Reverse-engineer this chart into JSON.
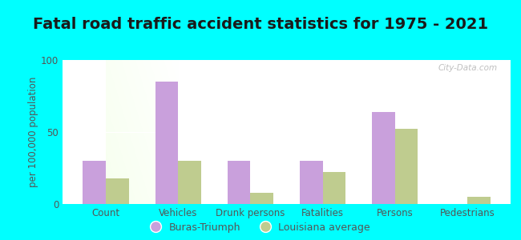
{
  "title": "Fatal road traffic accident statistics for 1975 - 2021",
  "categories": [
    "Count",
    "Vehicles",
    "Drunk persons",
    "Fatalities",
    "Persons",
    "Pedestrians"
  ],
  "buras_triumph": [
    30,
    85,
    30,
    30,
    64,
    0
  ],
  "louisiana_avg": [
    18,
    30,
    8,
    22,
    52,
    5
  ],
  "ylabel": "per 100,000 population",
  "ylim": [
    0,
    100
  ],
  "yticks": [
    0,
    50,
    100
  ],
  "bar_color_buras": "#c9a0dc",
  "bar_color_la": "#bfcc8f",
  "bg_outer": "#00ffff",
  "title_color": "#1a1a1a",
  "tick_label_color": "#555555",
  "legend_label_buras": "Buras-Triumph",
  "legend_label_la": "Louisiana average",
  "watermark": "City-Data.com",
  "bar_width": 0.32,
  "title_fontsize": 14,
  "label_fontsize": 8.5
}
